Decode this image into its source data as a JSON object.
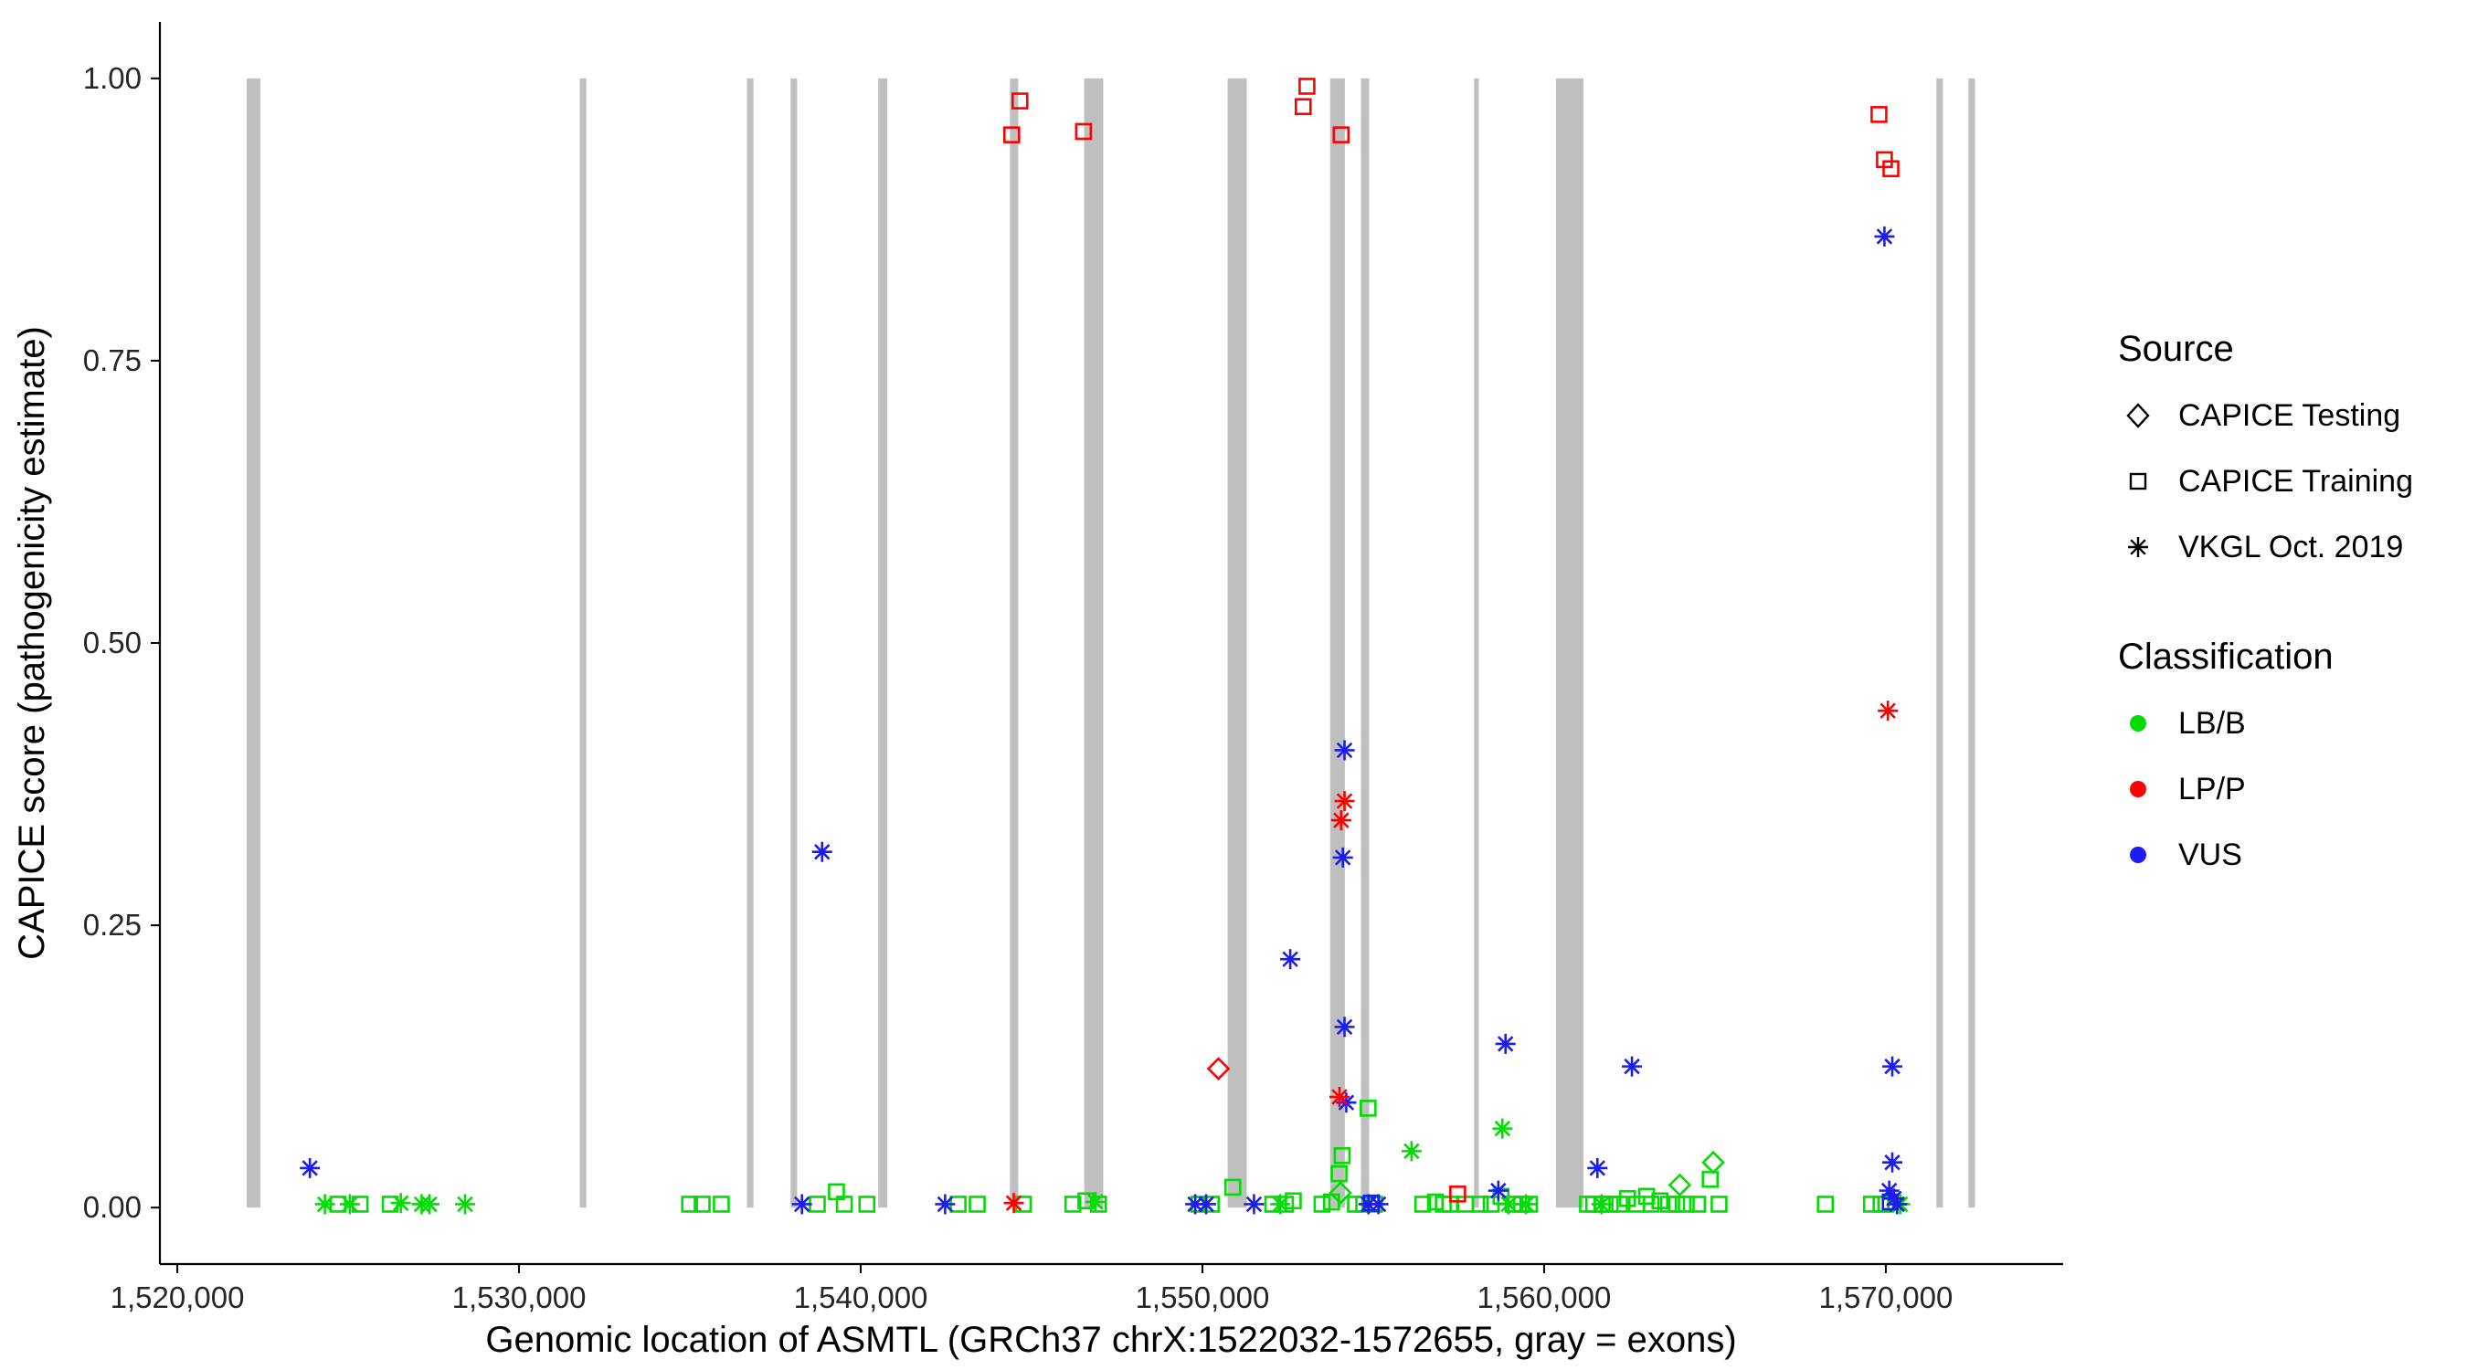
{
  "chart_data": {
    "type": "scatter",
    "title": "",
    "xlabel": "Genomic location of ASMTL (GRCh37 chrX:1522032-1572655, gray = exons)",
    "ylabel": "CAPICE score (pathogenicity estimate)",
    "x_domain": [
      1519490,
      1575190
    ],
    "y_domain": [
      -0.05,
      1.05
    ],
    "x_ticks": [
      {
        "value": 1520000,
        "label": "1,520,000"
      },
      {
        "value": 1530000,
        "label": "1,530,000"
      },
      {
        "value": 1540000,
        "label": "1,540,000"
      },
      {
        "value": 1550000,
        "label": "1,550,000"
      },
      {
        "value": 1560000,
        "label": "1,560,000"
      },
      {
        "value": 1570000,
        "label": "1,570,000"
      }
    ],
    "y_ticks": [
      {
        "value": 0,
        "label": "0.00"
      },
      {
        "value": 0.25,
        "label": "0.25"
      },
      {
        "value": 0.5,
        "label": "0.50"
      },
      {
        "value": 0.75,
        "label": "0.75"
      },
      {
        "value": 1,
        "label": "1.00"
      }
    ],
    "grid": false,
    "legend_position": "right",
    "exon_color": "#BFBFBF",
    "exons": [
      [
        1522032,
        1522430
      ],
      [
        1531780,
        1531970
      ],
      [
        1536670,
        1536860
      ],
      [
        1537950,
        1538140
      ],
      [
        1540510,
        1540780
      ],
      [
        1544370,
        1544610
      ],
      [
        1546540,
        1547100
      ],
      [
        1550740,
        1551300
      ],
      [
        1553740,
        1554170
      ],
      [
        1554640,
        1554880
      ],
      [
        1557950,
        1558090
      ],
      [
        1560350,
        1561150
      ],
      [
        1571480,
        1571670
      ],
      [
        1572420,
        1572610
      ]
    ],
    "point_codes": {
      "sources": {
        "te": "CAPICE Testing",
        "tr": "CAPICE Training",
        "vk": "VKGL Oct. 2019"
      },
      "source_shapes": {
        "te": "diamond",
        "tr": "square",
        "vk": "asterisk"
      },
      "classifications": {
        "B": "LB/B",
        "P": "LP/P",
        "U": "VUS"
      }
    },
    "classification_colors": {
      "B": "#00DD00",
      "P": "#FF0000",
      "U": "#1C1CF0"
    },
    "points": [
      [
        1524700,
        0.003,
        "tr",
        "B"
      ],
      [
        1525350,
        0.003,
        "tr",
        "B"
      ],
      [
        1526230,
        0.003,
        "tr",
        "B"
      ],
      [
        1534990,
        0.003,
        "tr",
        "B"
      ],
      [
        1535360,
        0.003,
        "tr",
        "B"
      ],
      [
        1535920,
        0.003,
        "tr",
        "B"
      ],
      [
        1538730,
        0.003,
        "tr",
        "B"
      ],
      [
        1539290,
        0.014,
        "tr",
        "B"
      ],
      [
        1539520,
        0.003,
        "tr",
        "B"
      ],
      [
        1540180,
        0.003,
        "tr",
        "B"
      ],
      [
        1542850,
        0.003,
        "tr",
        "B"
      ],
      [
        1543410,
        0.003,
        "tr",
        "B"
      ],
      [
        1544760,
        0.003,
        "tr",
        "B"
      ],
      [
        1546210,
        0.003,
        "tr",
        "B"
      ],
      [
        1546590,
        0.006,
        "tr",
        "B"
      ],
      [
        1546960,
        0.003,
        "tr",
        "B"
      ],
      [
        1549900,
        0.003,
        "tr",
        "B"
      ],
      [
        1550260,
        0.003,
        "tr",
        "B"
      ],
      [
        1550890,
        0.018,
        "tr",
        "B"
      ],
      [
        1552060,
        0.003,
        "tr",
        "B"
      ],
      [
        1552430,
        0.003,
        "tr",
        "B"
      ],
      [
        1552660,
        0.006,
        "tr",
        "B"
      ],
      [
        1553500,
        0.003,
        "tr",
        "B"
      ],
      [
        1553780,
        0.005,
        "tr",
        "B"
      ],
      [
        1554000,
        0.03,
        "tr",
        "B"
      ],
      [
        1554090,
        0.046,
        "tr",
        "B"
      ],
      [
        1554850,
        0.088,
        "tr",
        "B"
      ],
      [
        1554480,
        0.003,
        "tr",
        "B"
      ],
      [
        1554720,
        0.003,
        "tr",
        "B"
      ],
      [
        1555040,
        0.003,
        "tr",
        "B"
      ],
      [
        1556450,
        0.003,
        "tr",
        "B"
      ],
      [
        1556820,
        0.005,
        "tr",
        "B"
      ],
      [
        1557050,
        0.003,
        "tr",
        "B"
      ],
      [
        1557240,
        0.003,
        "tr",
        "B"
      ],
      [
        1557700,
        0.003,
        "tr",
        "B"
      ],
      [
        1558130,
        0.003,
        "tr",
        "B"
      ],
      [
        1558450,
        0.003,
        "tr",
        "B"
      ],
      [
        1558740,
        0.01,
        "tr",
        "B"
      ],
      [
        1559100,
        0.003,
        "tr",
        "B"
      ],
      [
        1559340,
        0.003,
        "tr",
        "B"
      ],
      [
        1559570,
        0.003,
        "tr",
        "B"
      ],
      [
        1561270,
        0.003,
        "tr",
        "B"
      ],
      [
        1561450,
        0.003,
        "tr",
        "B"
      ],
      [
        1561700,
        0.003,
        "tr",
        "B"
      ],
      [
        1561930,
        0.003,
        "tr",
        "B"
      ],
      [
        1562210,
        0.003,
        "tr",
        "B"
      ],
      [
        1562440,
        0.008,
        "tr",
        "B"
      ],
      [
        1562710,
        0.003,
        "tr",
        "B"
      ],
      [
        1563000,
        0.01,
        "tr",
        "B"
      ],
      [
        1563130,
        0.003,
        "tr",
        "B"
      ],
      [
        1563390,
        0.006,
        "tr",
        "B"
      ],
      [
        1563640,
        0.003,
        "tr",
        "B"
      ],
      [
        1563880,
        0.003,
        "tr",
        "B"
      ],
      [
        1564160,
        0.003,
        "tr",
        "B"
      ],
      [
        1564490,
        0.003,
        "tr",
        "B"
      ],
      [
        1564860,
        0.025,
        "tr",
        "B"
      ],
      [
        1565120,
        0.003,
        "tr",
        "B"
      ],
      [
        1568230,
        0.003,
        "tr",
        "B"
      ],
      [
        1569580,
        0.003,
        "tr",
        "B"
      ],
      [
        1569860,
        0.003,
        "tr",
        "B"
      ],
      [
        1570000,
        0.003,
        "tr",
        "B"
      ],
      [
        1524320,
        0.003,
        "vk",
        "B"
      ],
      [
        1525050,
        0.003,
        "vk",
        "B"
      ],
      [
        1526540,
        0.004,
        "vk",
        "B"
      ],
      [
        1527150,
        0.003,
        "vk",
        "B"
      ],
      [
        1527380,
        0.003,
        "vk",
        "B"
      ],
      [
        1528420,
        0.003,
        "vk",
        "B"
      ],
      [
        1546870,
        0.005,
        "vk",
        "B"
      ],
      [
        1552280,
        0.003,
        "vk",
        "B"
      ],
      [
        1556120,
        0.05,
        "vk",
        "B"
      ],
      [
        1558780,
        0.07,
        "vk",
        "B"
      ],
      [
        1558960,
        0.003,
        "vk",
        "B"
      ],
      [
        1559470,
        0.003,
        "vk",
        "B"
      ],
      [
        1561680,
        0.003,
        "vk",
        "B"
      ],
      [
        1570420,
        0.003,
        "vk",
        "B"
      ],
      [
        1554040,
        0.013,
        "te",
        "B"
      ],
      [
        1563970,
        0.02,
        "te",
        "B"
      ],
      [
        1564950,
        0.04,
        "te",
        "B"
      ],
      [
        1523880,
        0.035,
        "vk",
        "U"
      ],
      [
        1538870,
        0.315,
        "vk",
        "U"
      ],
      [
        1552570,
        0.22,
        "vk",
        "U"
      ],
      [
        1554160,
        0.405,
        "vk",
        "U"
      ],
      [
        1554110,
        0.31,
        "vk",
        "U"
      ],
      [
        1554160,
        0.16,
        "vk",
        "U"
      ],
      [
        1554210,
        0.093,
        "vk",
        "U"
      ],
      [
        1558870,
        0.145,
        "vk",
        "U"
      ],
      [
        1562570,
        0.125,
        "vk",
        "U"
      ],
      [
        1570190,
        0.125,
        "vk",
        "U"
      ],
      [
        1569960,
        0.86,
        "vk",
        "U"
      ],
      [
        1570190,
        0.04,
        "vk",
        "U"
      ],
      [
        1538280,
        0.003,
        "vk",
        "U"
      ],
      [
        1542470,
        0.003,
        "vk",
        "U"
      ],
      [
        1549790,
        0.003,
        "vk",
        "U"
      ],
      [
        1550110,
        0.003,
        "vk",
        "U"
      ],
      [
        1551510,
        0.003,
        "vk",
        "U"
      ],
      [
        1554860,
        0.003,
        "vk",
        "U"
      ],
      [
        1555150,
        0.003,
        "vk",
        "U"
      ],
      [
        1558660,
        0.015,
        "vk",
        "U"
      ],
      [
        1561560,
        0.035,
        "vk",
        "U"
      ],
      [
        1570100,
        0.015,
        "vk",
        "U"
      ],
      [
        1570240,
        0.008,
        "vk",
        "U"
      ],
      [
        1570330,
        0.003,
        "vk",
        "U"
      ],
      [
        1554950,
        0.004,
        "tr",
        "U"
      ],
      [
        1570130,
        0.005,
        "tr",
        "U"
      ],
      [
        1557470,
        0.012,
        "tr",
        "P"
      ],
      [
        1544420,
        0.95,
        "tr",
        "P"
      ],
      [
        1544660,
        0.98,
        "tr",
        "P"
      ],
      [
        1546520,
        0.953,
        "tr",
        "P"
      ],
      [
        1552950,
        0.975,
        "tr",
        "P"
      ],
      [
        1553060,
        0.993,
        "tr",
        "P"
      ],
      [
        1554060,
        0.95,
        "tr",
        "P"
      ],
      [
        1569800,
        0.968,
        "tr",
        "P"
      ],
      [
        1569960,
        0.928,
        "tr",
        "P"
      ],
      [
        1570150,
        0.92,
        "tr",
        "P"
      ],
      [
        1550470,
        0.123,
        "te",
        "P"
      ],
      [
        1554160,
        0.36,
        "vk",
        "P"
      ],
      [
        1554060,
        0.343,
        "vk",
        "P"
      ],
      [
        1554010,
        0.098,
        "vk",
        "P"
      ],
      [
        1570060,
        0.44,
        "vk",
        "P"
      ],
      [
        1544480,
        0.004,
        "vk",
        "P"
      ]
    ]
  },
  "legend": {
    "source": {
      "title": "Source",
      "items": [
        {
          "label": "CAPICE Testing",
          "shape": "diamond"
        },
        {
          "label": "CAPICE Training",
          "shape": "square"
        },
        {
          "label": "VKGL Oct. 2019",
          "shape": "asterisk"
        }
      ]
    },
    "classification": {
      "title": "Classification",
      "items": [
        {
          "label": "LB/B",
          "color": "#00DD00"
        },
        {
          "label": "LP/P",
          "color": "#FF0000"
        },
        {
          "label": "VUS",
          "color": "#1C1CF0"
        }
      ]
    }
  }
}
